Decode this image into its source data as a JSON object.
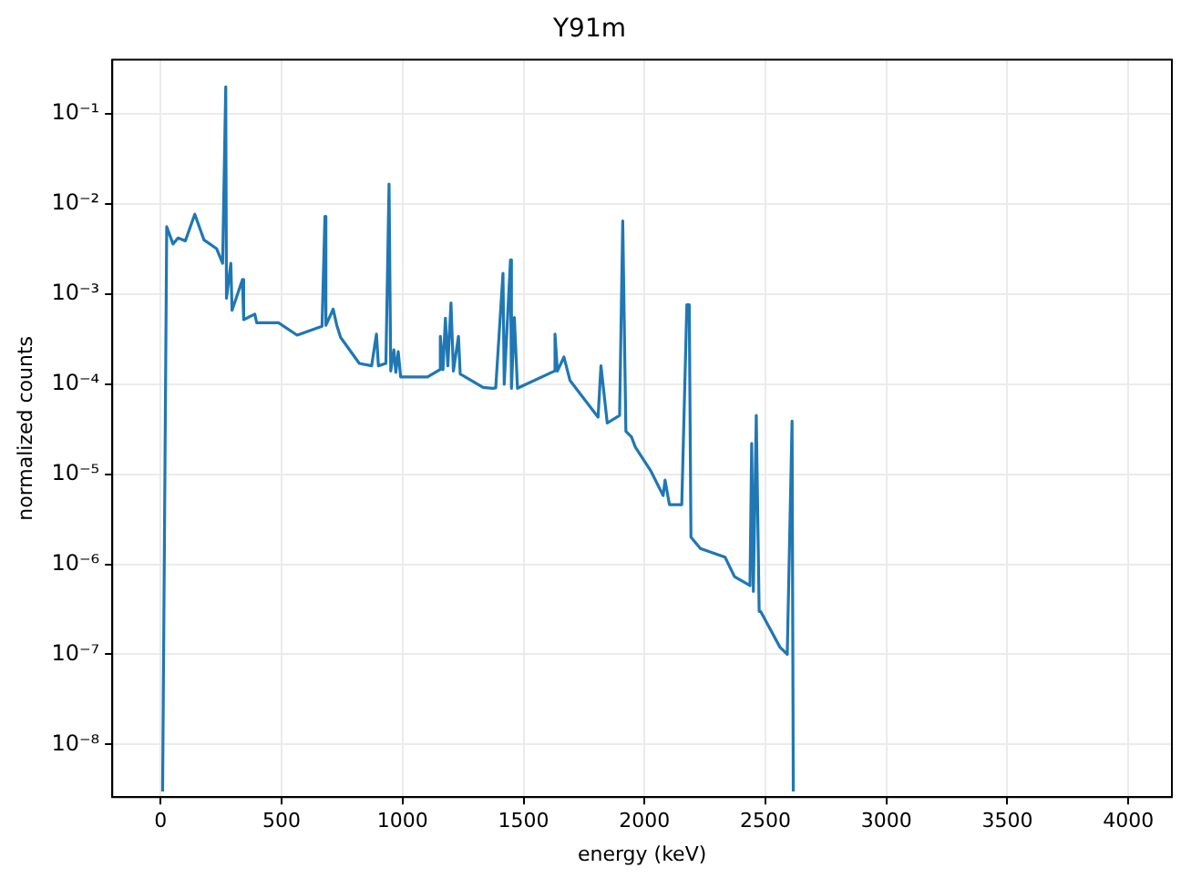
{
  "chart_data": {
    "type": "line",
    "title": "Y91m",
    "xlabel": "energy (keV)",
    "ylabel": "normalized counts",
    "x": [
      8,
      25,
      51,
      72,
      102,
      141,
      179,
      231,
      256,
      269,
      272,
      290,
      295,
      338,
      343,
      389,
      397,
      487,
      564,
      667,
      679,
      683,
      713,
      728,
      744,
      821,
      872,
      892,
      900,
      931,
      944,
      951,
      964,
      972,
      982,
      992,
      1103,
      1154,
      1156,
      1167,
      1177,
      1187,
      1200,
      1210,
      1231,
      1238,
      1333,
      1372,
      1385,
      1415,
      1420,
      1446,
      1450,
      1462,
      1475,
      1628,
      1630,
      1640,
      1667,
      1692,
      1808,
      1820,
      1846,
      1897,
      1910,
      1923,
      1946,
      1962,
      2025,
      2077,
      2085,
      2103,
      2154,
      2175,
      2185,
      2192,
      2231,
      2333,
      2372,
      2436,
      2443,
      2450,
      2462,
      2474,
      2480,
      2560,
      2590,
      2610,
      2615
    ],
    "series": [
      {
        "color": "#1f77b4",
        "values": [
          3e-09,
          0.0056,
          0.0036,
          0.0042,
          0.0039,
          0.0077,
          0.004,
          0.0032,
          0.0022,
          0.2,
          0.0009,
          0.0022,
          0.00066,
          0.00145,
          0.00052,
          0.0006,
          0.00048,
          0.00048,
          0.00035,
          0.00044,
          0.0073,
          0.00045,
          0.00068,
          0.00045,
          0.00033,
          0.00017,
          0.00016,
          0.00036,
          0.00016,
          0.00017,
          0.0167,
          0.00014,
          0.00024,
          0.000135,
          0.00023,
          0.00012,
          0.00012,
          0.000145,
          0.00034,
          0.000145,
          0.00054,
          0.00016,
          0.0008,
          0.00014,
          0.00034,
          0.00013,
          9.2e-05,
          9e-05,
          9.1e-05,
          0.0017,
          0.0001,
          0.0024,
          9e-05,
          0.00055,
          9e-05,
          0.00014,
          0.00036,
          0.00014,
          0.0002,
          0.00011,
          4.3e-05,
          0.00016,
          3.7e-05,
          4.5e-05,
          0.0065,
          3e-05,
          2.6e-05,
          2e-05,
          1.1e-05,
          5.8e-06,
          8.6e-06,
          4.6e-06,
          4.6e-06,
          0.00076,
          0.00076,
          2e-06,
          1.5e-06,
          1.2e-06,
          7.3e-07,
          5.8e-07,
          2.2e-05,
          5e-07,
          4.5e-05,
          3e-07,
          3e-07,
          1.2e-07,
          1e-07,
          3.9e-05,
          3e-09
        ]
      }
    ],
    "xlim": [
      -200,
      4180
    ],
    "xticks": [
      0,
      500,
      1000,
      1500,
      2000,
      2500,
      3000,
      3500,
      4000
    ],
    "ylim": [
      2.6e-09,
      0.4
    ],
    "log": "y",
    "yticks": [
      {
        "value": 1e-08,
        "label": "10⁻⁸"
      },
      {
        "value": 1e-07,
        "label": "10⁻⁷"
      },
      {
        "value": 1e-06,
        "label": "10⁻⁶"
      },
      {
        "value": 1e-05,
        "label": "10⁻⁵"
      },
      {
        "value": 0.0001,
        "label": "10⁻⁴"
      },
      {
        "value": 0.001,
        "label": "10⁻³"
      },
      {
        "value": 0.01,
        "label": "10⁻²"
      },
      {
        "value": 0.1,
        "label": "10⁻¹"
      }
    ],
    "grid": true,
    "legend": false,
    "marker": "none",
    "line_style": "solid"
  }
}
